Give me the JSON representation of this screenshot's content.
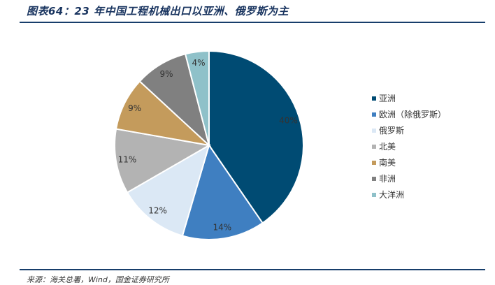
{
  "header": {
    "title": "图表64：23 年中国工程机械出口以亚洲、俄罗斯为主"
  },
  "footer": {
    "source": "来源：海关总署，Wind，国金证券研究所"
  },
  "chart_data": {
    "type": "pie",
    "slices": [
      {
        "name": "亚洲",
        "value": 40,
        "label": "40%",
        "color": "#004b73",
        "label_color": "#333333"
      },
      {
        "name": "欧洲（除俄罗斯）",
        "value": 14,
        "label": "14%",
        "color": "#3f7fc1",
        "label_color": "#333333"
      },
      {
        "name": "俄罗斯",
        "value": 12,
        "label": "12%",
        "color": "#dbe8f5",
        "label_color": "#333333"
      },
      {
        "name": "北美",
        "value": 11,
        "label": "11%",
        "color": "#b3b3b3",
        "label_color": "#333333"
      },
      {
        "name": "南美",
        "value": 9,
        "label": "9%",
        "color": "#c49b5c",
        "label_color": "#333333"
      },
      {
        "name": "非洲",
        "value": 9,
        "label": "9%",
        "color": "#808080",
        "label_color": "#333333"
      },
      {
        "name": "大洋洲",
        "value": 4,
        "label": "4%",
        "color": "#8fc1c9",
        "label_color": "#333333"
      }
    ],
    "start_angle_deg": 0,
    "direction": "clockwise",
    "legend_position": "right"
  }
}
